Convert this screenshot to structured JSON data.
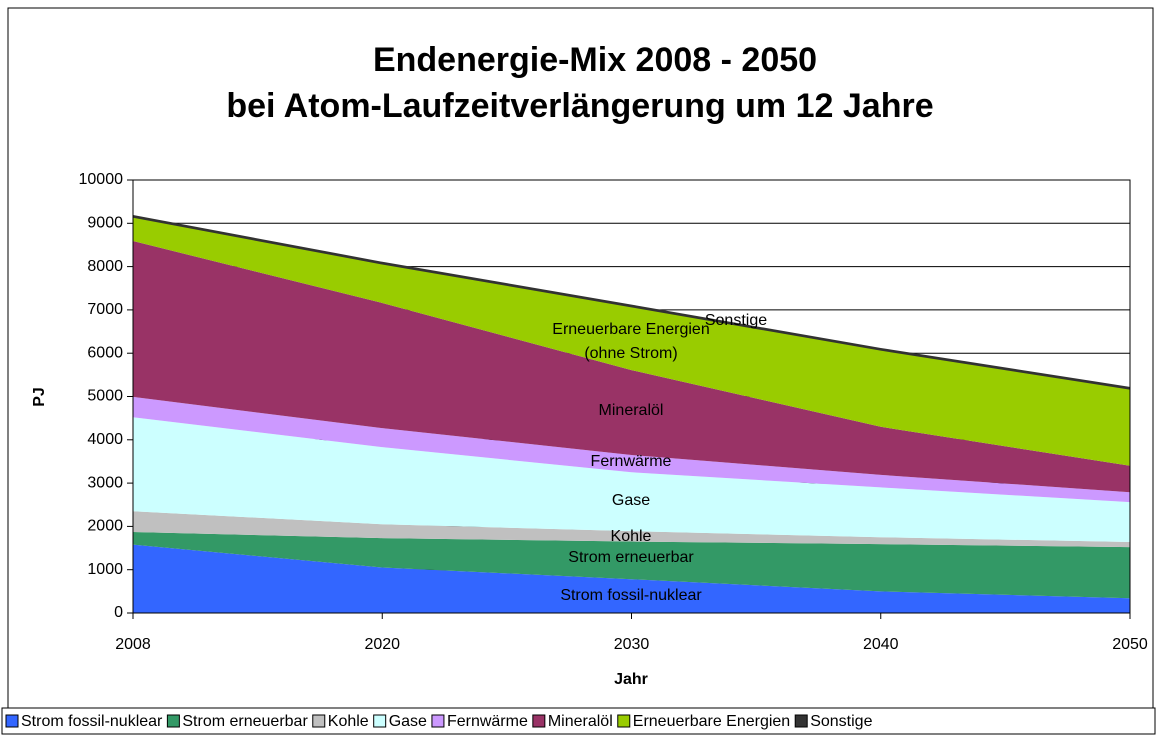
{
  "chart_data": {
    "type": "stacked-area",
    "title": [
      "Endenergie-Mix 2008 - 2050",
      "bei Atom-Laufzeitverlängerung um 12 Jahre"
    ],
    "x_label": "Jahr",
    "y_label": "PJ",
    "categories": [
      "2008",
      "2020",
      "2030",
      "2040",
      "2050"
    ],
    "series": [
      {
        "name": "Strom fossil-nuklear",
        "color": "#3366ff",
        "values": [
          1580,
          1050,
          780,
          500,
          340
        ]
      },
      {
        "name": "Strom erneuerbar",
        "color": "#339966",
        "values": [
          290,
          680,
          870,
          1090,
          1180
        ]
      },
      {
        "name": "Kohle",
        "color": "#c0c0c0",
        "values": [
          480,
          320,
          240,
          160,
          120
        ]
      },
      {
        "name": "Gase",
        "color": "#ccffff",
        "values": [
          2170,
          1780,
          1360,
          1150,
          920
        ]
      },
      {
        "name": "Fernwärme",
        "color": "#cc99ff",
        "values": [
          470,
          440,
          400,
          290,
          230
        ]
      },
      {
        "name": "Mineralöl",
        "color": "#993366",
        "values": [
          3600,
          2890,
          1960,
          1110,
          610
        ]
      },
      {
        "name": "Erneuerbare Energien",
        "color": "#99cc00",
        "values": [
          550,
          900,
          1460,
          1770,
          1770
        ]
      },
      {
        "name": "Sonstige",
        "color": "#333333",
        "values": [
          40,
          40,
          40,
          40,
          40
        ]
      }
    ],
    "annotations": [
      "Strom fossil-nuklear",
      "Strom erneuerbar",
      "Kohle",
      "Gase",
      "Fernwärme",
      "Mineralöl",
      "Erneuerbare Energien",
      "(ohne Strom)",
      "Sonstige"
    ],
    "ylim": [
      0,
      10000
    ],
    "yticks": [
      0,
      1000,
      2000,
      3000,
      4000,
      5000,
      6000,
      7000,
      8000,
      9000,
      10000
    ],
    "grid": true,
    "legend": "bottom"
  }
}
